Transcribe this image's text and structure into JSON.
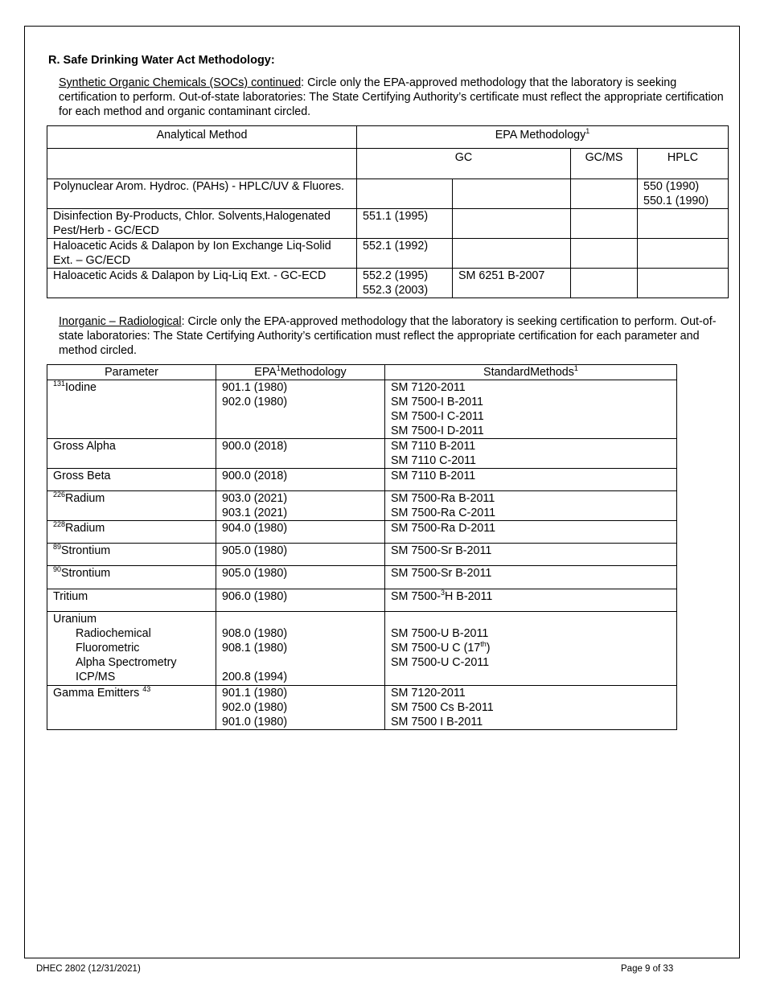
{
  "section_heading": "R.  Safe Drinking Water Act Methodology:",
  "soc": {
    "intro_underlined": "Synthetic Organic Chemicals (SOCs) continued",
    "intro_text": ":  Circle only the EPA-approved methodology that the laboratory is seeking certification to perform.  Out-of-state laboratories:  The State Certifying Authority’s certificate must reflect the appropriate certification for each method and organic contaminant circled.",
    "headers": {
      "method": "Analytical Method",
      "epa": "EPA Methodology",
      "epa_sup": "1",
      "gc": "GC",
      "gcms": "GC/MS",
      "hplc": "HPLC"
    },
    "rows": [
      {
        "method": "Polynuclear Arom. Hydroc. (PAHs) - HPLC/UV & Fluores.",
        "gc1": [],
        "gc2": [],
        "gcms": [],
        "hplc": [
          "550 (1990)",
          "550.1 (1990)"
        ]
      },
      {
        "method": "Disinfection By-Products, Chlor. Solvents,Halogenated Pest/Herb - GC/ECD",
        "gc1": [
          "551.1 (1995)"
        ],
        "gc2": [],
        "gcms": [],
        "hplc": []
      },
      {
        "method": "Haloacetic Acids & Dalapon by Ion Exchange Liq-Solid Ext. – GC/ECD",
        "gc1": [
          "552.1 (1992)"
        ],
        "gc2": [],
        "gcms": [],
        "hplc": []
      },
      {
        "method": "Haloacetic Acids & Dalapon by Liq-Liq Ext. - GC-ECD",
        "gc1": [
          "552.2 (1995)",
          "552.3 (2003)"
        ],
        "gc2": [
          "SM 6251 B-2007"
        ],
        "gcms": [],
        "hplc": []
      }
    ]
  },
  "rad": {
    "intro_underlined": "Inorganic – Radiological",
    "intro_text": ":  Circle only the EPA-approved methodology that the laboratory is seeking certification to perform.  Out-of-state laboratories:  The State Certifying Authority’s certification must reflect the appropriate certification for each parameter and method circled.",
    "headers": {
      "parameter": "Parameter",
      "epa_pre": "EPA",
      "epa_sup": "1",
      "epa_post": "Methodology",
      "sm": "StandardMethods",
      "sm_sup": "1"
    },
    "rows": [
      {
        "sup": "131",
        "param": "Iodine",
        "epa": [
          "901.1 (1980)",
          "902.0 (1980)"
        ],
        "sm": [
          "SM 7120-2011",
          "SM 7500-I B-2011",
          "SM 7500-I C-2011",
          "SM 7500-I D-2011"
        ]
      },
      {
        "sup": "",
        "param": "Gross Alpha",
        "epa": [
          "900.0  (2018)"
        ],
        "sm": [
          "SM 7110 B-2011",
          "SM 7110 C-2011"
        ]
      },
      {
        "sup": "",
        "param": "Gross Beta",
        "epa": [
          "900.0  (2018)"
        ],
        "sm": [
          "SM 7110 B-2011"
        ]
      },
      {
        "sup": "226",
        "param": "Radium",
        "epa": [
          "903.0 (2021)",
          "903.1 (2021)"
        ],
        "sm": [
          "SM 7500-Ra B-2011",
          "SM 7500-Ra C-2011"
        ]
      },
      {
        "sup": "228",
        "param": "Radium",
        "epa": [
          "904.0 (1980)"
        ],
        "sm": [
          "SM 7500-Ra D-2011"
        ]
      },
      {
        "sup": "89",
        "param": "Strontium",
        "epa": [
          "905.0 (1980)"
        ],
        "sm": [
          "SM 7500-Sr B-2011"
        ]
      },
      {
        "sup": "90",
        "param": "Strontium",
        "epa": [
          "905.0 (1980)"
        ],
        "sm": [
          "SM 7500-Sr B-2011"
        ]
      },
      {
        "sup": "",
        "param": "Tritium",
        "epa": [
          "906.0 (1980)"
        ],
        "sm_pre": "SM 7500-",
        "sm_sup": "3",
        "sm_post": "H B-2011"
      },
      {
        "param": "Uranium",
        "sub": [
          "Radiochemical",
          "Fluorometric",
          "Alpha Spectrometry",
          "ICP/MS"
        ],
        "epa": [
          "908.0 (1980)",
          "908.1 (1980)",
          "",
          "200.8 (1994)"
        ],
        "sm_1": "SM 7500-U B-2011",
        "sm_2_pre": "SM 7500-U C (17",
        "sm_2_sup": "th",
        "sm_2_post": ")",
        "sm_3": "SM 7500-U C-2011"
      },
      {
        "param": "Gamma Emitters ",
        "sup_after": "43",
        "epa": [
          "901.1 (1980)",
          "902.0 (1980)",
          "901.0 (1980)"
        ],
        "sm": [
          "SM 7120-2011",
          "SM 7500 Cs B-2011",
          "SM 7500 I B-2011"
        ]
      }
    ]
  },
  "footer": {
    "form": "DHEC 2802 (12/31/2021)",
    "page": "Page 9 of 33"
  }
}
